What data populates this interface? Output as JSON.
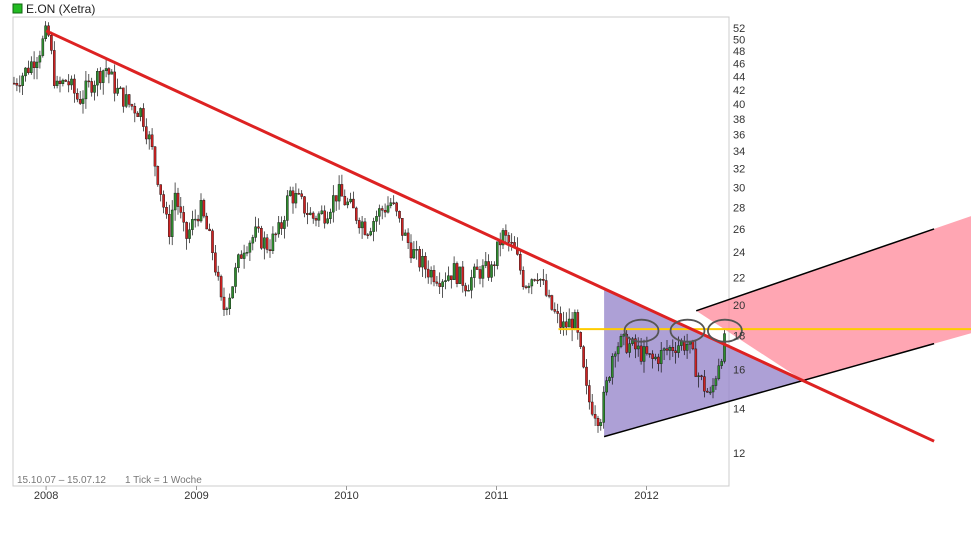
{
  "header": {
    "title": "E.ON (Xetra)",
    "legend_color": "#22bb22"
  },
  "footer": {
    "range_text": "15.10.07 – 15.07.12",
    "tick_text": "1 Tick = 1 Woche"
  },
  "colors": {
    "up": "#2e8b2e",
    "down": "#cc2222",
    "trendline": "#dd2222",
    "channel_line": "#000000",
    "channel_fill": "#ff8899",
    "channel_inner_fill": "#9988cc",
    "resistance": "#ffcc00",
    "ellipse": "#555555",
    "plot_border": "#cccccc"
  },
  "chart_data": {
    "type": "candlestick",
    "ylim": [
      11.5,
      53
    ],
    "y_scale": "log",
    "y_ticks": [
      12,
      14,
      16,
      18,
      20,
      22,
      24,
      26,
      28,
      30,
      32,
      34,
      36,
      38,
      40,
      42,
      44,
      46,
      48,
      50,
      52
    ],
    "x_ticks": [
      "2008",
      "2009",
      "2010",
      "2011",
      "2012"
    ],
    "x_tick_dates": [
      "2008-01-01",
      "2009-01-01",
      "2010-01-01",
      "2011-01-01",
      "2012-01-01"
    ],
    "x_range": [
      "2007-10-15",
      "2012-07-15"
    ],
    "series_points": [
      [
        "2007-10-15",
        43.0
      ],
      [
        "2007-11-15",
        45.0
      ],
      [
        "2007-12-15",
        48.0
      ],
      [
        "2008-01-05",
        51.5
      ],
      [
        "2008-01-25",
        42.0
      ],
      [
        "2008-02-20",
        43.5
      ],
      [
        "2008-03-20",
        40.5
      ],
      [
        "2008-04-20",
        43.0
      ],
      [
        "2008-05-25",
        45.5
      ],
      [
        "2008-06-20",
        42.0
      ],
      [
        "2008-07-20",
        40.0
      ],
      [
        "2008-08-20",
        39.0
      ],
      [
        "2008-09-10",
        35.0
      ],
      [
        "2008-09-30",
        31.0
      ],
      [
        "2008-10-25",
        25.5
      ],
      [
        "2008-11-10",
        29.5
      ],
      [
        "2008-12-05",
        25.0
      ],
      [
        "2009-01-10",
        28.0
      ],
      [
        "2009-02-10",
        24.0
      ],
      [
        "2009-03-05",
        19.5
      ],
      [
        "2009-03-25",
        21.0
      ],
      [
        "2009-04-25",
        24.5
      ],
      [
        "2009-05-25",
        25.5
      ],
      [
        "2009-06-25",
        24.5
      ],
      [
        "2009-07-25",
        26.0
      ],
      [
        "2009-08-15",
        29.5
      ],
      [
        "2009-09-10",
        28.5
      ],
      [
        "2009-10-10",
        27.0
      ],
      [
        "2009-11-10",
        27.5
      ],
      [
        "2009-12-10",
        29.5
      ],
      [
        "2010-01-20",
        27.5
      ],
      [
        "2010-02-20",
        26.0
      ],
      [
        "2010-03-20",
        27.5
      ],
      [
        "2010-04-20",
        28.5
      ],
      [
        "2010-05-20",
        25.5
      ],
      [
        "2010-06-20",
        23.5
      ],
      [
        "2010-07-20",
        22.5
      ],
      [
        "2010-08-20",
        22.0
      ],
      [
        "2010-09-20",
        22.5
      ],
      [
        "2010-10-20",
        21.5
      ],
      [
        "2010-11-20",
        22.5
      ],
      [
        "2010-12-20",
        22.5
      ],
      [
        "2011-01-15",
        25.5
      ],
      [
        "2011-02-15",
        24.0
      ],
      [
        "2011-03-10",
        21.5
      ],
      [
        "2011-04-10",
        22.5
      ],
      [
        "2011-05-10",
        20.0
      ],
      [
        "2011-06-10",
        18.5
      ],
      [
        "2011-07-10",
        19.0
      ],
      [
        "2011-08-10",
        14.5
      ],
      [
        "2011-09-10",
        13.5
      ],
      [
        "2011-09-25",
        15.0
      ],
      [
        "2011-10-15",
        17.5
      ],
      [
        "2011-11-15",
        17.5
      ],
      [
        "2011-12-15",
        17.0
      ],
      [
        "2012-01-15",
        16.5
      ],
      [
        "2012-02-15",
        17.0
      ],
      [
        "2012-03-15",
        17.5
      ],
      [
        "2012-04-10",
        17.5
      ],
      [
        "2012-05-10",
        15.5
      ],
      [
        "2012-06-05",
        14.5
      ],
      [
        "2012-06-25",
        16.5
      ],
      [
        "2012-07-15",
        18.0
      ]
    ],
    "annotations": {
      "trendline": [
        [
          "2008-01-01",
          51.5
        ],
        [
          "2013-12-01",
          12.5
        ]
      ],
      "channel_lower": [
        [
          "2011-09-20",
          12.7
        ],
        [
          "2013-12-01",
          17.5
        ]
      ],
      "channel_upper": [
        [
          "2012-05-01",
          19.6
        ],
        [
          "2013-12-01",
          26.0
        ]
      ],
      "resistance_level": 18.4,
      "resistance_from": "2011-06-01",
      "ellipses": [
        [
          "2011-12-20",
          18.3
        ],
        [
          "2012-04-10",
          18.3
        ],
        [
          "2012-07-10",
          18.3
        ]
      ]
    }
  }
}
